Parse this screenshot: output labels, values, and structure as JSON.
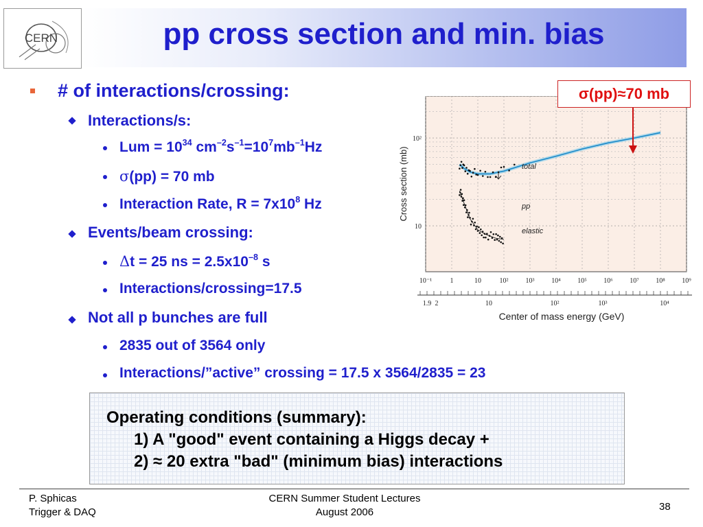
{
  "title": "pp cross section and min. bias",
  "logo": {
    "text": "CERN"
  },
  "bullets": {
    "b1": "# of interactions/crossing:",
    "b1_1": "Interactions/s:",
    "b1_1_1": {
      "a": "Lum = 10",
      "s1": "34",
      "b": " cm",
      "s2": "–2",
      "c": "s",
      "s3": "–1",
      "d": "=10",
      "s4": "7",
      "e": "mb",
      "s5": "–1",
      "f": "Hz"
    },
    "b1_1_2": {
      "sym": "σ",
      "rest": "(pp) = 70 mb"
    },
    "b1_1_3": {
      "a": "Interaction Rate, R = 7x10",
      "s1": "8",
      "b": " Hz"
    },
    "b1_2": "Events/beam crossing:",
    "b1_2_1": {
      "sym": "Δ",
      "a": "t = 25 ns = 2.5x10",
      "s1": "–8",
      "b": " s"
    },
    "b1_2_2": "Interactions/crossing=17.5",
    "b1_3": "Not all p bunches are full",
    "b1_3_1": "2835 out of 3564 only",
    "b1_3_2": "Interactions/”active” crossing = 17.5 x 3564/2835 = 23"
  },
  "callout": "σ(pp)≈70 mb",
  "summary": {
    "line1": "Operating conditions (summary):",
    "line2": "1)  A \"good\" event containing a  Higgs decay +",
    "line3": "2)  ≈ 20 extra \"bad\" (minimum bias) interactions"
  },
  "footer": {
    "author": "P. Sphicas",
    "course": "Trigger & DAQ",
    "event": "CERN Summer Student Lectures",
    "date": "August 2006",
    "page": "38"
  },
  "chart_data": {
    "type": "line",
    "ylabel": "Cross section (mb)",
    "xlabel": "Center of mass energy (GeV)",
    "y_ticks": [
      "10",
      "10²"
    ],
    "x_ticks_top": [
      "10⁻¹",
      "1",
      "10",
      "10²",
      "10³",
      "10⁴",
      "10⁵",
      "10⁶",
      "10⁷",
      "10⁸",
      "10⁹"
    ],
    "x_ticks_bottom": [
      "1.9",
      "2",
      "10",
      "10²",
      "10³",
      "10⁴"
    ],
    "annotations": [
      "total",
      "pp",
      "elastic"
    ],
    "series": [
      {
        "name": "total",
        "x": [
          2,
          3,
          5,
          10,
          30,
          100,
          1000,
          10000,
          100000,
          1000000,
          10000000,
          100000000
        ],
        "y": [
          50,
          45,
          41,
          39,
          39,
          42,
          52,
          62,
          75,
          88,
          100,
          115
        ]
      },
      {
        "name": "elastic",
        "x": [
          2,
          3,
          5,
          10,
          20,
          50,
          100
        ],
        "y": [
          25,
          18,
          12,
          9,
          8,
          7.2,
          7
        ]
      }
    ],
    "xscale": "log",
    "yscale": "log",
    "xlim": [
      0.1,
      1000000000
    ],
    "ylim": [
      3,
      300
    ]
  }
}
